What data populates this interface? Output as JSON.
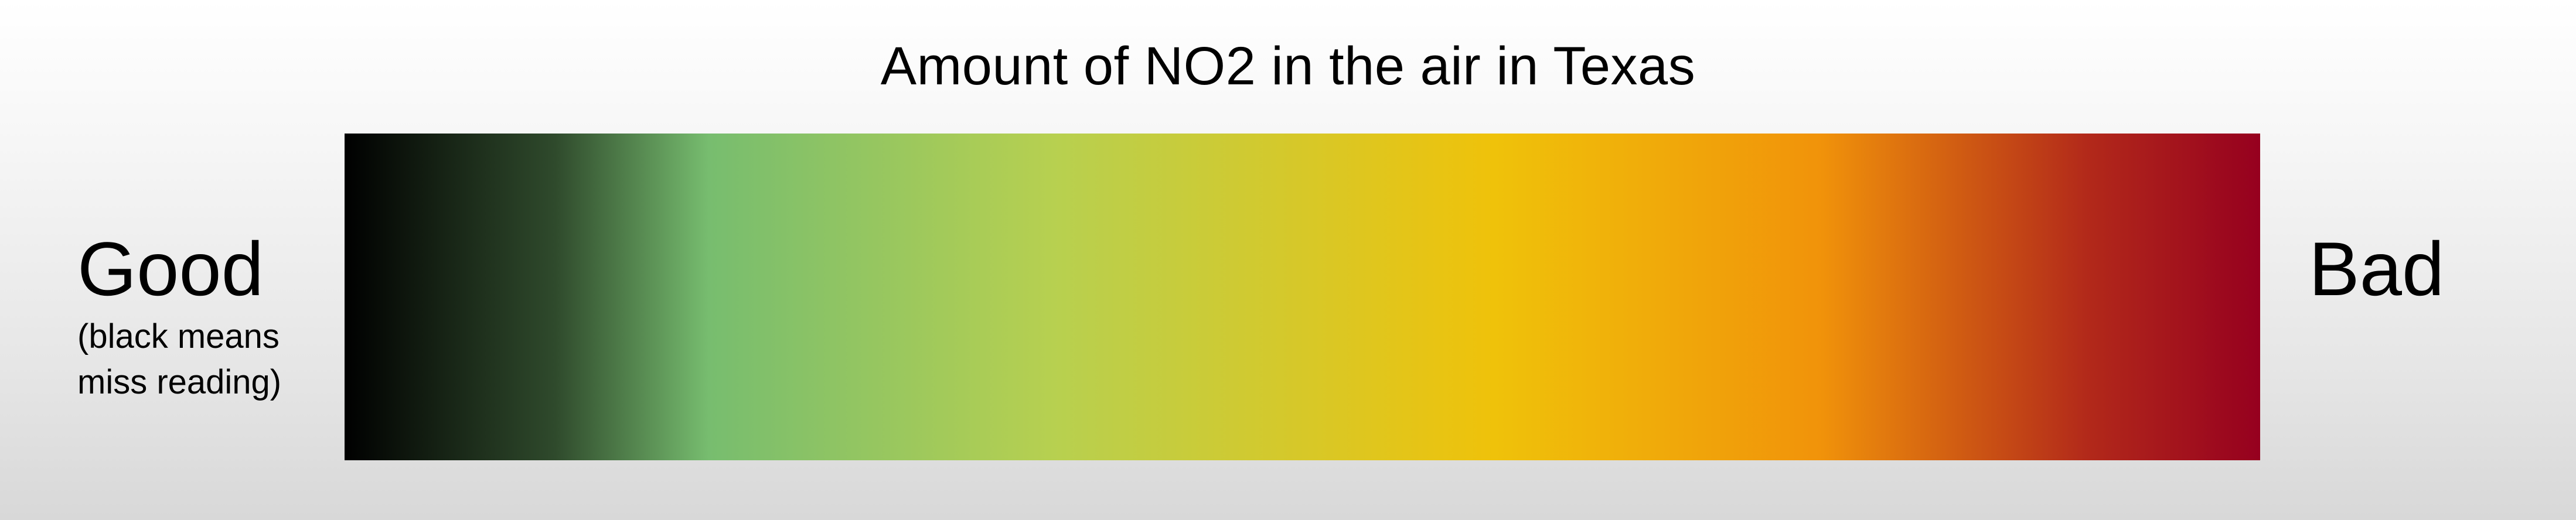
{
  "title": "Amount of NO2 in the air in Texas",
  "scale": {
    "low_label": "Good",
    "low_note_line1": "(black means",
    "low_note_line2": "miss reading)",
    "high_label": "Bad",
    "gradient_colors": [
      "#000000",
      "#2f4a2c",
      "#77bd6f",
      "#b7d050",
      "#efc20a",
      "#f1930a",
      "#b2291a",
      "#96001f"
    ]
  }
}
